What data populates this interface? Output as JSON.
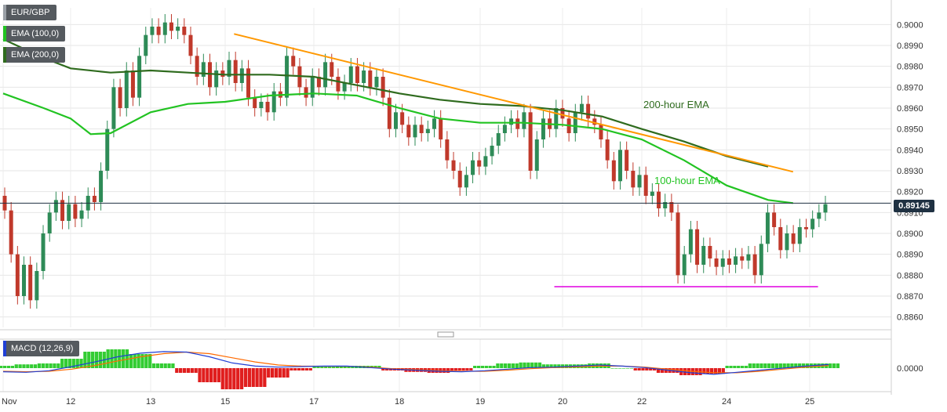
{
  "symbol": "EUR/GBP",
  "indicators": {
    "ema100": "EMA (100,0)",
    "ema200": "EMA (200,0)",
    "macd": "MACD (12,26,9)"
  },
  "last_price": "0.89145",
  "annotations": {
    "ema200": "200-hour EMA",
    "ema100": "100-hour EMA"
  },
  "colors": {
    "up": "#2e8b57",
    "down": "#c0392b",
    "ema100": "#22c322",
    "ema200": "#2f6b1e",
    "trendline": "#ff9800",
    "support": "#e000e0",
    "macd_line": "#1f3fd6",
    "signal_line": "#ff6a00",
    "hist_up": "#33cc33",
    "hist_down": "#e01e1e"
  },
  "chart_data": {
    "type": "candlestick",
    "price_axis": {
      "ylim": [
        0.8855,
        0.9008
      ],
      "ticks": [
        "0.9000",
        "0.8990",
        "0.8980",
        "0.8970",
        "0.8960",
        "0.8950",
        "0.8940",
        "0.8930",
        "0.8920",
        "0.8910",
        "0.8900",
        "0.8890",
        "0.8880",
        "0.8870",
        "0.8860"
      ]
    },
    "macd_axis": {
      "ticks": [
        "0.0000"
      ]
    },
    "x_labels": [
      "Nov",
      "12",
      "13",
      "15",
      "17",
      "18",
      "19",
      "20",
      "22",
      "24",
      "25"
    ],
    "last_price": 0.89145,
    "ema100_points": [
      [
        0,
        0.8967
      ],
      [
        0.6,
        0.896
      ],
      [
        1.0,
        0.8955
      ],
      [
        1.25,
        0.89475
      ],
      [
        1.5,
        0.8948
      ],
      [
        2.0,
        0.8958
      ],
      [
        2.5,
        0.8962
      ],
      [
        3.0,
        0.8963
      ],
      [
        3.5,
        0.8966
      ],
      [
        4.0,
        0.8967
      ],
      [
        4.5,
        0.8966
      ],
      [
        5.0,
        0.896
      ],
      [
        5.5,
        0.8955
      ],
      [
        6.0,
        0.8953
      ],
      [
        6.5,
        0.8953
      ],
      [
        7.0,
        0.8952
      ],
      [
        7.5,
        0.895
      ],
      [
        8.0,
        0.8945
      ],
      [
        8.5,
        0.8935
      ],
      [
        9.0,
        0.8923
      ],
      [
        9.5,
        0.8916
      ],
      [
        9.8,
        0.89145
      ]
    ],
    "ema200_points": [
      [
        0,
        0.8993
      ],
      [
        0.6,
        0.8984
      ],
      [
        1.0,
        0.8979
      ],
      [
        1.5,
        0.8977
      ],
      [
        2.0,
        0.8978
      ],
      [
        2.5,
        0.8977
      ],
      [
        3.0,
        0.8976
      ],
      [
        3.5,
        0.8976
      ],
      [
        4.0,
        0.8975
      ],
      [
        4.5,
        0.8971
      ],
      [
        5.0,
        0.8967
      ],
      [
        5.5,
        0.8964
      ],
      [
        6.0,
        0.8962
      ],
      [
        6.5,
        0.8961
      ],
      [
        7.0,
        0.8959
      ],
      [
        7.5,
        0.8956
      ],
      [
        8.0,
        0.895
      ],
      [
        8.5,
        0.8944
      ],
      [
        9.0,
        0.8937
      ],
      [
        9.5,
        0.8932
      ]
    ],
    "trendline": [
      [
        3.1,
        0.89955
      ],
      [
        9.8,
        0.89295
      ]
    ],
    "support_line": [
      [
        6.9,
        0.88745
      ],
      [
        10.1,
        0.88745
      ]
    ],
    "candles": [
      [
        0.8918,
        0.8911
      ],
      [
        0.8911,
        0.889
      ],
      [
        0.889,
        0.887
      ],
      [
        0.887,
        0.8885
      ],
      [
        0.8885,
        0.8868
      ],
      [
        0.8868,
        0.8882
      ],
      [
        0.8882,
        0.89
      ],
      [
        0.89,
        0.891
      ],
      [
        0.891,
        0.8916
      ],
      [
        0.8916,
        0.8906
      ],
      [
        0.8906,
        0.8914
      ],
      [
        0.8914,
        0.8907
      ],
      [
        0.8907,
        0.8911
      ],
      [
        0.8911,
        0.8918
      ],
      [
        0.8918,
        0.8915
      ],
      [
        0.8915,
        0.893
      ],
      [
        0.893,
        0.895
      ],
      [
        0.895,
        0.897
      ],
      [
        0.897,
        0.896
      ],
      [
        0.896,
        0.8978
      ],
      [
        0.8978,
        0.8965
      ],
      [
        0.8965,
        0.8985
      ],
      [
        0.8985,
        0.8995
      ],
      [
        0.8995,
        0.8999
      ],
      [
        0.8999,
        0.8995
      ],
      [
        0.8995,
        0.9001
      ],
      [
        0.9001,
        0.8997
      ],
      [
        0.8997,
        0.8999
      ],
      [
        0.8999,
        0.8995
      ],
      [
        0.8995,
        0.8985
      ],
      [
        0.8985,
        0.8975
      ],
      [
        0.8975,
        0.8982
      ],
      [
        0.8982,
        0.897
      ],
      [
        0.897,
        0.8978
      ],
      [
        0.8978,
        0.8975
      ],
      [
        0.8975,
        0.8983
      ],
      [
        0.8983,
        0.8972
      ],
      [
        0.8972,
        0.8979
      ],
      [
        0.8979,
        0.8965
      ],
      [
        0.8965,
        0.896
      ],
      [
        0.896,
        0.8963
      ],
      [
        0.8963,
        0.8958
      ],
      [
        0.8958,
        0.8968
      ],
      [
        0.8968,
        0.8965
      ],
      [
        0.8965,
        0.8985
      ],
      [
        0.8985,
        0.898
      ],
      [
        0.898,
        0.897
      ],
      [
        0.897,
        0.8965
      ],
      [
        0.8965,
        0.8975
      ],
      [
        0.8975,
        0.897
      ],
      [
        0.897,
        0.8982
      ],
      [
        0.8982,
        0.8975
      ],
      [
        0.8975,
        0.8968
      ],
      [
        0.8968,
        0.8972
      ],
      [
        0.8972,
        0.898
      ],
      [
        0.898,
        0.8972
      ],
      [
        0.8972,
        0.8978
      ],
      [
        0.8978,
        0.897
      ],
      [
        0.897,
        0.8975
      ],
      [
        0.8975,
        0.8965
      ],
      [
        0.8965,
        0.895
      ],
      [
        0.895,
        0.8958
      ],
      [
        0.8958,
        0.8952
      ],
      [
        0.8952,
        0.8946
      ],
      [
        0.8946,
        0.8952
      ],
      [
        0.8952,
        0.8948
      ],
      [
        0.8948,
        0.895
      ],
      [
        0.895,
        0.8955
      ],
      [
        0.8955,
        0.8945
      ],
      [
        0.8945,
        0.8935
      ],
      [
        0.8935,
        0.893
      ],
      [
        0.893,
        0.8922
      ],
      [
        0.8922,
        0.8928
      ],
      [
        0.8928,
        0.8935
      ],
      [
        0.8935,
        0.8932
      ],
      [
        0.8932,
        0.8937
      ],
      [
        0.8937,
        0.8942
      ],
      [
        0.8942,
        0.8948
      ],
      [
        0.8948,
        0.8952
      ],
      [
        0.8952,
        0.8955
      ],
      [
        0.8955,
        0.895
      ],
      [
        0.895,
        0.8958
      ],
      [
        0.8958,
        0.893
      ],
      [
        0.893,
        0.8945
      ],
      [
        0.8945,
        0.8955
      ],
      [
        0.8955,
        0.895
      ],
      [
        0.895,
        0.896
      ],
      [
        0.896,
        0.8955
      ],
      [
        0.8955,
        0.8948
      ],
      [
        0.8948,
        0.8958
      ],
      [
        0.8958,
        0.8962
      ],
      [
        0.8962,
        0.8955
      ],
      [
        0.8955,
        0.8952
      ],
      [
        0.8952,
        0.8945
      ],
      [
        0.8945,
        0.8935
      ],
      [
        0.8935,
        0.8925
      ],
      [
        0.8925,
        0.894
      ],
      [
        0.894,
        0.893
      ],
      [
        0.893,
        0.8922
      ],
      [
        0.8922,
        0.8928
      ],
      [
        0.8928,
        0.8918
      ],
      [
        0.8918,
        0.892
      ],
      [
        0.892,
        0.8912
      ],
      [
        0.8912,
        0.8915
      ],
      [
        0.8915,
        0.891
      ],
      [
        0.891,
        0.888
      ],
      [
        0.888,
        0.889
      ],
      [
        0.889,
        0.8902
      ],
      [
        0.8902,
        0.8885
      ],
      [
        0.8885,
        0.8894
      ],
      [
        0.8894,
        0.8888
      ],
      [
        0.8888,
        0.8884
      ],
      [
        0.8884,
        0.8888
      ],
      [
        0.8888,
        0.8885
      ],
      [
        0.8885,
        0.8889
      ],
      [
        0.8889,
        0.8887
      ],
      [
        0.8887,
        0.889
      ],
      [
        0.889,
        0.888
      ],
      [
        0.888,
        0.8895
      ],
      [
        0.8895,
        0.891
      ],
      [
        0.891,
        0.8903
      ],
      [
        0.8903,
        0.8892
      ],
      [
        0.8892,
        0.89
      ],
      [
        0.89,
        0.8895
      ],
      [
        0.8895,
        0.8903
      ],
      [
        0.8903,
        0.8902
      ],
      [
        0.8902,
        0.8907
      ],
      [
        0.8907,
        0.891
      ],
      [
        0.891,
        0.8914
      ]
    ],
    "macd_line": [
      -0.00035,
      -0.0004,
      -0.00025,
      0.00015,
      0.0006,
      0.0011,
      0.00145,
      0.0016,
      0.00155,
      0.0011,
      0.0005,
      0.0002,
      0.0001,
      0.00015,
      0.0002,
      0.0002,
      5e-05,
      -0.0001,
      -0.0002,
      -0.0003,
      -0.00035,
      -0.00025,
      -0.0001,
      5e-05,
      0.0001,
      0.0002,
      0.0003,
      0.0002,
      5e-05,
      -0.0002,
      -0.00045,
      -0.0006,
      -0.0004,
      -0.0002,
      0.0,
      0.0002,
      0.00035
    ],
    "signal_line": [
      -0.0003,
      -0.00035,
      -0.0003,
      -0.0001,
      0.00025,
      0.0007,
      0.0011,
      0.0014,
      0.00155,
      0.0014,
      0.001,
      0.0006,
      0.0003,
      0.0002,
      0.00018,
      0.00018,
      0.0001,
      -5e-05,
      -0.00015,
      -0.00025,
      -0.0003,
      -0.0003,
      -0.0002,
      -5e-05,
      5e-05,
      0.00012,
      0.0002,
      0.0002,
      0.0001,
      -0.0001,
      -0.0003,
      -0.00045,
      -0.00045,
      -0.0003,
      -0.0001,
      0.0001,
      0.00025
    ],
    "histogram": [
      5e-05,
      8e-05,
      0.0001,
      0.0002,
      0.00035,
      0.0004,
      0.0003,
      0.0001,
      -0.0001,
      -0.0003,
      -0.00045,
      -0.0004,
      -0.0002,
      -5e-05,
      3e-05,
      5e-05,
      5e-05,
      -5e-05,
      -8e-05,
      -0.0001,
      -5e-05,
      5e-05,
      0.0001,
      0.00012,
      8e-05,
      8e-05,
      0.0001,
      0.0,
      -5e-05,
      -0.0001,
      -0.00015,
      -0.00012,
      5e-05,
      0.0001,
      0.0001,
      0.0001,
      0.0001
    ],
    "grid": true
  }
}
